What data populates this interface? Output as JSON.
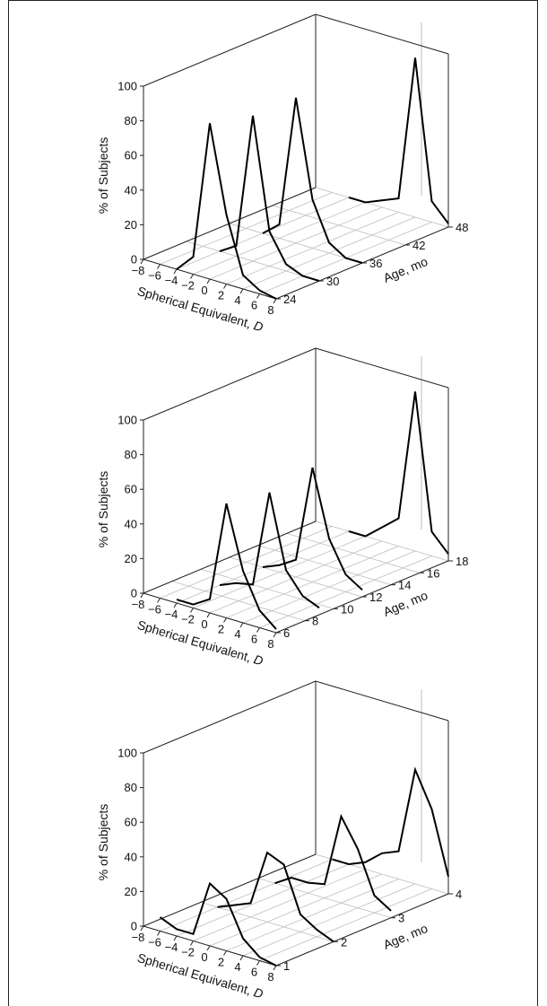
{
  "chart_data": [
    {
      "type": "line",
      "panel": "top",
      "xlabel": "Spherical Equivalent, D",
      "ylabel": "% of Subjects",
      "zlabel": "Age, mo",
      "x_ticks": [
        "−8",
        "−6",
        "−4",
        "−2",
        "0",
        "2",
        "4",
        "6",
        "8"
      ],
      "y_ticks": [
        "0",
        "20",
        "40",
        "60",
        "80",
        "100"
      ],
      "z_ticks": [
        "24",
        "30",
        "36",
        "42",
        "48"
      ],
      "zlim": [
        24,
        48
      ],
      "xlim": [
        -8,
        8
      ],
      "ylim": [
        0,
        100
      ],
      "x": [
        -4,
        -2,
        0,
        2,
        4,
        6,
        8
      ],
      "series": [
        {
          "age": 24,
          "values": [
            0,
            10,
            90,
            40,
            8,
            2,
            0
          ]
        },
        {
          "age": 30,
          "values": [
            0,
            6,
            84,
            20,
            4,
            0,
            0
          ]
        },
        {
          "age": 36,
          "values": [
            0,
            8,
            84,
            28,
            6,
            0,
            0
          ]
        },
        {
          "age": 48,
          "values": [
            0,
            0,
            4,
            8,
            92,
            12,
            2
          ]
        }
      ]
    },
    {
      "type": "line",
      "panel": "middle",
      "xlabel": "Spherical Equivalent, D",
      "ylabel": "% of Subjects",
      "zlabel": "Age, mo",
      "x_ticks": [
        "−8",
        "−6",
        "−4",
        "−2",
        "0",
        "2",
        "4",
        "6",
        "8"
      ],
      "y_ticks": [
        "0",
        "20",
        "40",
        "60",
        "80",
        "100"
      ],
      "z_ticks": [
        "6",
        "8",
        "10",
        "12",
        "14",
        "16",
        "18"
      ],
      "zlim": [
        6,
        18
      ],
      "xlim": [
        -8,
        8
      ],
      "ylim": [
        0,
        100
      ],
      "x": [
        -4,
        -2,
        0,
        2,
        4,
        6,
        8
      ],
      "series": [
        {
          "age": 6,
          "values": [
            2,
            2,
            8,
            66,
            30,
            10,
            2
          ]
        },
        {
          "age": 9,
          "values": [
            0,
            4,
            6,
            62,
            20,
            8,
            4
          ]
        },
        {
          "age": 12,
          "values": [
            0,
            4,
            10,
            66,
            28,
            10,
            4
          ]
        },
        {
          "age": 18,
          "values": [
            0,
            0,
            8,
            16,
            92,
            14,
            4
          ]
        }
      ]
    },
    {
      "type": "line",
      "panel": "bottom",
      "xlabel": "Spherical Equivalent, D",
      "ylabel": "% of Subjects",
      "zlabel": "Age, mo",
      "x_ticks": [
        "−8",
        "−6",
        "−4",
        "−2",
        "0",
        "2",
        "4",
        "6",
        "8"
      ],
      "y_ticks": [
        "0",
        "20",
        "40",
        "60",
        "80",
        "100"
      ],
      "z_ticks": [
        "1",
        "2",
        "3",
        "4"
      ],
      "zlim": [
        1,
        4
      ],
      "xlim": [
        -8,
        8
      ],
      "ylim": [
        0,
        100
      ],
      "x": [
        -6,
        -4,
        -2,
        0,
        2,
        4,
        6,
        8
      ],
      "series": [
        {
          "age": 1,
          "values": [
            8,
            4,
            4,
            36,
            30,
            10,
            2,
            0
          ]
        },
        {
          "age": 2,
          "values": [
            0,
            4,
            8,
            40,
            36,
            10,
            4,
            0
          ]
        },
        {
          "age": 3,
          "values": [
            0,
            6,
            6,
            8,
            50,
            34,
            10,
            4
          ]
        },
        {
          "age": 4,
          "values": [
            0,
            0,
            4,
            12,
            16,
            66,
            46,
            10
          ]
        }
      ]
    }
  ]
}
